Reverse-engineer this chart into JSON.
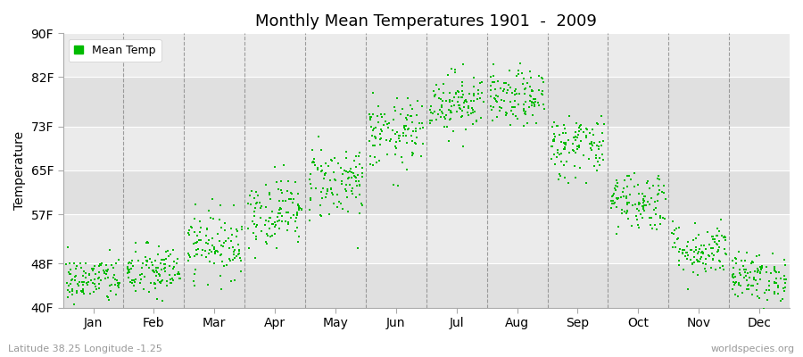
{
  "title": "Monthly Mean Temperatures 1901  -  2009",
  "ylabel": "Temperature",
  "ytick_labels": [
    "40F",
    "48F",
    "57F",
    "65F",
    "73F",
    "82F",
    "90F"
  ],
  "ytick_values": [
    40,
    48,
    57,
    65,
    73,
    82,
    90
  ],
  "ylim": [
    40,
    90
  ],
  "months": [
    "Jan",
    "Feb",
    "Mar",
    "Apr",
    "May",
    "Jun",
    "Jul",
    "Aug",
    "Sep",
    "Oct",
    "Nov",
    "Dec"
  ],
  "month_centers": [
    0.5,
    1.5,
    2.5,
    3.5,
    4.5,
    5.5,
    6.5,
    7.5,
    8.5,
    9.5,
    10.5,
    11.5
  ],
  "dot_color": "#00BB00",
  "bg_color": "#EBEBEB",
  "legend_label": "Mean Temp",
  "bottom_left": "Latitude 38.25 Longitude -1.25",
  "bottom_right": "worldspecies.org",
  "n_years": 109,
  "monthly_mean_temps_F": [
    45.0,
    46.5,
    51.5,
    57.5,
    63.0,
    71.5,
    77.5,
    78.0,
    69.5,
    59.5,
    50.5,
    45.5
  ],
  "monthly_std_F": [
    2.2,
    2.5,
    3.0,
    3.2,
    3.5,
    3.2,
    2.8,
    2.5,
    3.0,
    2.8,
    2.5,
    2.2
  ],
  "xlim": [
    0,
    12
  ]
}
